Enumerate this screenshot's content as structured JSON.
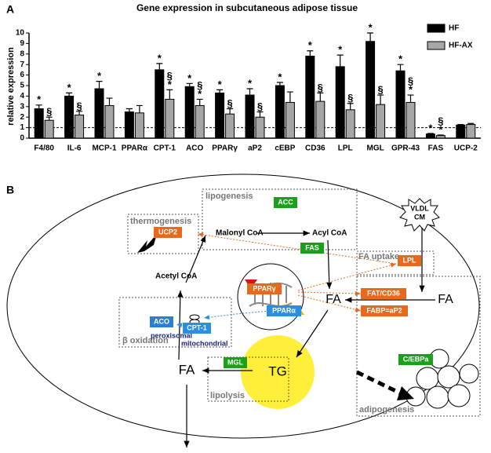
{
  "panel_labels": [
    "A",
    "B"
  ],
  "chart_data": {
    "type": "bar",
    "title": "Gene expression in subcutaneous adipose tissue",
    "y_label": "relative expression",
    "categories": [
      "F4/80",
      "IL-6",
      "MCP-1",
      "PPARα",
      "CPT-1",
      "ACO",
      "PPARγ",
      "aP2",
      "cEBP",
      "CD36",
      "LPL",
      "MGL",
      "GPR-43",
      "FAS",
      "UCP-2"
    ],
    "series": [
      {
        "name": "HF",
        "color": "#000000",
        "values": [
          2.8,
          4.0,
          4.7,
          2.5,
          6.5,
          4.9,
          4.3,
          4.1,
          5.0,
          7.8,
          6.8,
          9.2,
          6.4,
          0.4,
          1.25
        ],
        "errors": [
          0.35,
          0.3,
          0.7,
          0.3,
          0.6,
          0.3,
          0.3,
          0.6,
          0.3,
          0.5,
          1.1,
          0.8,
          0.6,
          0.05,
          0.05
        ],
        "annotations": [
          [
            "*"
          ],
          [
            "*"
          ],
          [
            "*"
          ],
          null,
          [
            "*"
          ],
          [
            "*"
          ],
          [
            "*"
          ],
          [
            "*"
          ],
          [
            "*"
          ],
          [
            "*"
          ],
          [
            "*"
          ],
          [
            "*"
          ],
          [
            "*"
          ],
          [
            "*"
          ],
          null
        ]
      },
      {
        "name": "HF-AX",
        "color": "#a6a6a6",
        "values": [
          1.7,
          2.2,
          3.1,
          2.4,
          3.7,
          3.1,
          2.3,
          2.0,
          3.4,
          3.5,
          2.7,
          3.2,
          3.4,
          0.25,
          1.3
        ],
        "errors": [
          0.3,
          0.35,
          0.7,
          0.7,
          0.9,
          0.6,
          0.5,
          0.5,
          1.0,
          0.8,
          0.6,
          0.9,
          0.7,
          0.05,
          0.1
        ],
        "annotations": [
          [
            "§"
          ],
          [
            "§"
          ],
          null,
          null,
          [
            "§",
            "*"
          ],
          [
            "§",
            "*"
          ],
          [
            "§"
          ],
          [
            "§"
          ],
          null,
          [
            "§"
          ],
          [
            "§"
          ],
          [
            "§"
          ],
          [
            "§",
            "*"
          ],
          [
            "§",
            "*"
          ],
          null
        ]
      }
    ],
    "ylim": [
      0,
      10
    ],
    "yticks": [
      0,
      1,
      2,
      3,
      4,
      5,
      6,
      7,
      8,
      9,
      10
    ],
    "reference_line": 1,
    "legend": "top-right"
  },
  "diagram": {
    "regions": [
      "thermogenesis",
      "lipogenesis",
      "FA uptake",
      "β oxidation",
      "lipolysis",
      "adipogenesis"
    ],
    "metabolites": [
      "Malonyl CoA",
      "Acyl CoA",
      "Acetyl CoA",
      "FA",
      "FA",
      "TG",
      "FA"
    ],
    "stimulus": [
      "VLDL",
      "CM"
    ],
    "sublabels": [
      "peroxisomal",
      "mitochondrial"
    ],
    "enzymes": [
      {
        "label": "UCP2",
        "color": "#e8681e"
      },
      {
        "label": "ACC",
        "color": "#1aa11a"
      },
      {
        "label": "FAS",
        "color": "#1aa11a"
      },
      {
        "label": "LPL",
        "color": "#e8681e"
      },
      {
        "label": "FAT/CD36",
        "color": "#e8681e"
      },
      {
        "label": "FABP=aP2",
        "color": "#e8681e"
      },
      {
        "label": "C/EBPa",
        "color": "#1aa11a"
      },
      {
        "label": "ACO",
        "color": "#2a7fd4"
      },
      {
        "label": "CPT-1",
        "color": "#2a8fe0"
      },
      {
        "label": "MGL",
        "color": "#1aa11a"
      },
      {
        "label": "PPARγ",
        "color": "#e8681e"
      },
      {
        "label": "PPARα",
        "color": "#2a8fe0"
      }
    ]
  }
}
